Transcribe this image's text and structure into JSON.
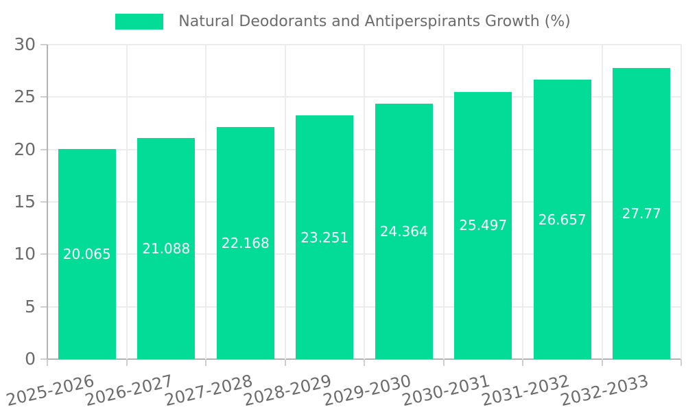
{
  "chart_data": {
    "type": "bar",
    "title": "Natural Deodorants and Antiperspirants Growth (%)",
    "categories": [
      "2025-2026",
      "2026-2027",
      "2027-2028",
      "2028-2029",
      "2029-2030",
      "2030-2031",
      "2031-2032",
      "2032-2033"
    ],
    "values": [
      20.065,
      21.088,
      22.168,
      23.251,
      24.364,
      25.497,
      26.657,
      27.77
    ],
    "value_labels": [
      "20.065",
      "21.088",
      "22.168",
      "23.251",
      "24.364",
      "25.497",
      "26.657",
      "27.77"
    ],
    "xlabel": "",
    "ylabel": "",
    "ylim": [
      0,
      30
    ],
    "yticks": [
      0,
      5,
      10,
      15,
      20,
      25,
      30
    ],
    "grid": true,
    "legend_position": "top",
    "bar_color": "#03DC96",
    "value_label_color": "#ffffff",
    "text_color": "#6b6b6b",
    "gridline_color": "#ececec",
    "axis_line_color": "#b3b3b3",
    "tick_color": "#cfcfcf",
    "x_tick_rotation_deg": -13
  }
}
